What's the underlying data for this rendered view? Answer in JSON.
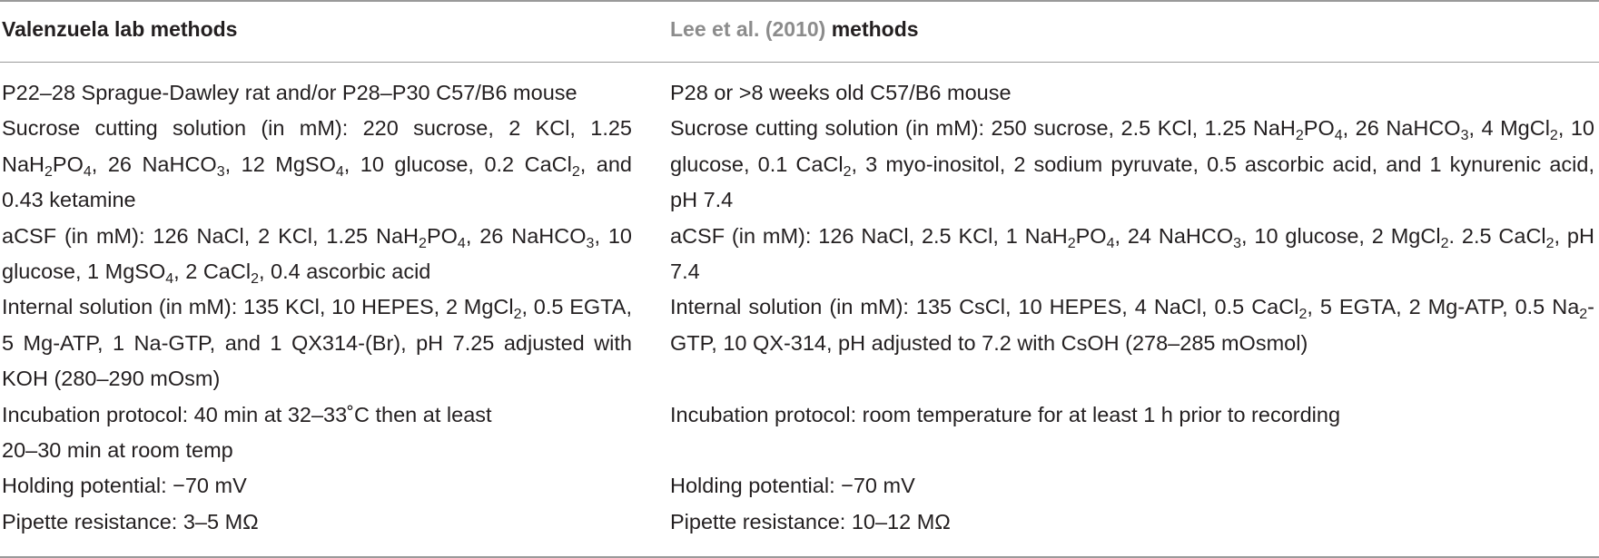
{
  "headers": {
    "col1": "Valenzuela lab methods",
    "col2_ref": "Lee et al. (2010)",
    "col2_suffix": " methods"
  },
  "col1": {
    "animals": "P22–28 Sprague-Dawley rat and/or P28–P30 C57/B6 mouse",
    "cutting": {
      "a": "Sucrose cutting solution (in mM): 220 sucrose, 2 KCl, 1.25 NaH",
      "a_sub": "2",
      "b": "PO",
      "b_sub": "4",
      "c": ", 26 NaHCO",
      "c_sub": "3",
      "d": ", 12 MgSO",
      "d_sub": "4",
      "e": ", 10 glucose, 0.2 CaCl",
      "e_sub": "2",
      "f": ", and 0.43 ketamine"
    },
    "acsf": {
      "a": "aCSF (in mM): 126 NaCl, 2 KCl, 1.25 NaH",
      "a_sub": "2",
      "b": "PO",
      "b_sub": "4",
      "c": ", 26 NaHCO",
      "c_sub": "3",
      "d": ", 10 glucose, 1 MgSO",
      "d_sub": "4",
      "e": ", 2 CaCl",
      "e_sub": "2",
      "f": ", 0.4 ascorbic acid"
    },
    "internal": {
      "a": "Internal solution (in mM): 135 KCl, 10 HEPES, 2 MgCl",
      "a_sub": "2",
      "b": ", 0.5 EGTA, 5 Mg-ATP, 1 Na-GTP, and 1 QX314-(Br), pH 7.25 adjusted with KOH (280–290 mOsm)"
    },
    "incubation_line1": "Incubation protocol: 40 min at 32–33˚C then at least",
    "incubation_line2": "20–30 min at room temp",
    "holding": "Holding potential: −70 mV",
    "pipette": "Pipette resistance: 3–5 MΩ"
  },
  "col2": {
    "animals": "P28 or >8 weeks old C57/B6 mouse",
    "cutting": {
      "a": "Sucrose cutting solution (in mM): 250 sucrose, 2.5 KCl, 1.25 NaH",
      "a_sub": "2",
      "b": "PO",
      "b_sub": "4",
      "c": ", 26 NaHCO",
      "c_sub": "3",
      "d": ", 4 MgCl",
      "d_sub": "2",
      "e": ", 10 glucose, 0.1 CaCl",
      "e_sub": "2",
      "f": ", 3 myo-inositol, 2 sodium pyruvate, 0.5 ascorbic acid, and 1 kynurenic acid, pH 7.4"
    },
    "acsf": {
      "a": "aCSF (in mM): 126 NaCl, 2.5 KCl, 1 NaH",
      "a_sub": "2",
      "b": "PO",
      "b_sub": "4",
      "c": ", 24 NaHCO",
      "c_sub": "3",
      "d": ", 10 glucose, 2 MgCl",
      "d_sub": "2",
      "e": ". 2.5 CaCl",
      "e_sub": "2",
      "f": ", pH 7.4"
    },
    "internal": {
      "a": "Internal solution (in mM): 135 CsCl, 10 HEPES, 4 NaCl, 0.5 CaCl",
      "a_sub": "2",
      "b": ", 5 EGTA, 2 Mg-ATP, 0.5 Na",
      "b_sub": "2",
      "c": "-GTP, 10 QX-314, pH adjusted to 7.2 with CsOH (278–285 mOsmol)"
    },
    "incubation": "Incubation protocol: room temperature for at least 1 h prior to recording",
    "holding": "Holding potential: −70 mV",
    "pipette": "Pipette resistance: 10–12 MΩ"
  }
}
